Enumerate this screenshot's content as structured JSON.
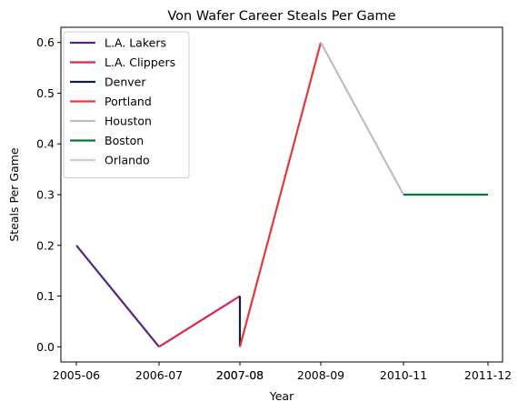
{
  "chart_data": {
    "type": "line",
    "title": "Von Wafer Career Steals Per Game",
    "xlabel": "Year",
    "ylabel": "Steals Per Game",
    "x_ticks": [
      "2005-06",
      "2006-07",
      "2007-08",
      "2007-08",
      "2008-09",
      "2010-11",
      "2011-12"
    ],
    "ylim": [
      -0.03,
      0.63
    ],
    "y_ticks": [
      "0.0",
      "0.1",
      "0.2",
      "0.3",
      "0.4",
      "0.5",
      "0.6"
    ],
    "grid": false,
    "legend_position": "top-left",
    "series": [
      {
        "name": "L.A. Lakers",
        "color": "#552583",
        "points": [
          [
            0.0,
            0.2
          ],
          [
            1.0,
            0.0
          ]
        ]
      },
      {
        "name": "L.A. Clippers",
        "color": "#E0234E",
        "points": [
          [
            1.0,
            0.0
          ],
          [
            2.0,
            0.1
          ]
        ]
      },
      {
        "name": "Denver",
        "color": "#0E2240",
        "points": [
          [
            2.0,
            0.1
          ],
          [
            2.0,
            0.0
          ]
        ]
      },
      {
        "name": "Portland",
        "color": "#E03A3E",
        "points": [
          [
            2.0,
            0.0
          ],
          [
            3.0,
            0.6
          ]
        ]
      },
      {
        "name": "Houston",
        "color": "#BEBEBE",
        "points": [
          [
            3.0,
            0.6
          ],
          [
            4.0,
            0.3
          ]
        ]
      },
      {
        "name": "Boston",
        "color": "#007A33",
        "points": [
          [
            4.0,
            0.3
          ],
          [
            5.0,
            0.3
          ]
        ]
      },
      {
        "name": "Orlando",
        "color": "#C4CED4",
        "points": []
      }
    ]
  }
}
